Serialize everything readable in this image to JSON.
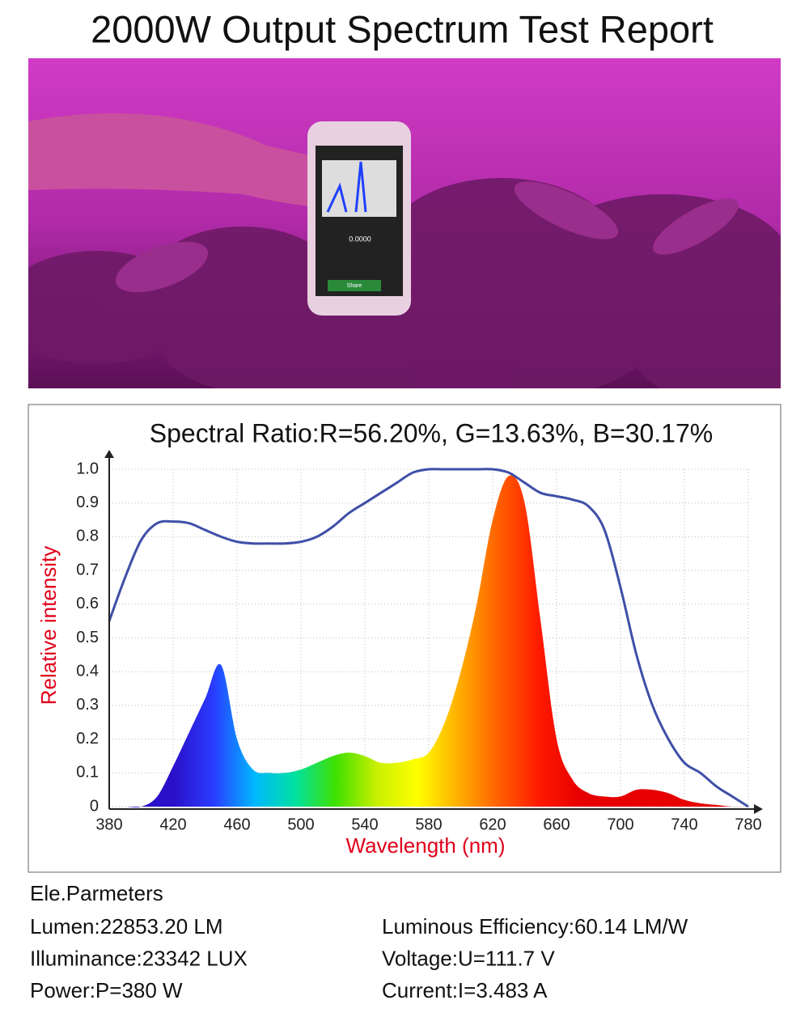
{
  "title": "2000W Output Spectrum Test Report",
  "photo": {
    "screen_reading": "0.0000",
    "button": "Share"
  },
  "chart_data": {
    "type": "line",
    "title": "Spectral Ratio:R=56.20%, G=13.63%, B=30.17%",
    "x_label": "Wavelength (nm)",
    "y_label": "Relative intensity",
    "x": [
      380,
      390,
      400,
      410,
      420,
      430,
      440,
      450,
      460,
      470,
      480,
      490,
      500,
      510,
      520,
      530,
      540,
      550,
      560,
      570,
      580,
      590,
      600,
      610,
      620,
      630,
      640,
      650,
      660,
      670,
      680,
      690,
      700,
      710,
      720,
      730,
      740,
      750,
      760,
      770,
      780
    ],
    "series": [
      {
        "type": "area",
        "colors": [
          "#2a10c8",
          "#2a3cff",
          "#00b8ff",
          "#00e0a0",
          "#40e000",
          "#c8f000",
          "#ffff00",
          "#ffb000",
          "#ff6000",
          "#ff1a00",
          "#e60000",
          "#e60000"
        ],
        "values": [
          0,
          0,
          0,
          0.03,
          0.12,
          0.22,
          0.32,
          0.42,
          0.2,
          0.11,
          0.1,
          0.1,
          0.11,
          0.13,
          0.15,
          0.16,
          0.15,
          0.13,
          0.13,
          0.14,
          0.16,
          0.25,
          0.4,
          0.6,
          0.85,
          0.98,
          0.9,
          0.55,
          0.2,
          0.08,
          0.04,
          0.03,
          0.03,
          0.05,
          0.05,
          0.04,
          0.02,
          0.01,
          0.005,
          0,
          0
        ]
      },
      {
        "type": "line",
        "color": "#3f4fa8",
        "values": [
          0.55,
          0.68,
          0.79,
          0.84,
          0.845,
          0.84,
          0.82,
          0.8,
          0.785,
          0.78,
          0.78,
          0.78,
          0.785,
          0.8,
          0.83,
          0.87,
          0.9,
          0.93,
          0.96,
          0.99,
          1.0,
          1.0,
          1.0,
          1.0,
          1.0,
          0.99,
          0.96,
          0.93,
          0.92,
          0.91,
          0.89,
          0.82,
          0.65,
          0.45,
          0.3,
          0.2,
          0.13,
          0.1,
          0.06,
          0.03,
          0
        ]
      }
    ],
    "xlim": [
      380,
      780
    ],
    "xticks": [
      380,
      420,
      460,
      500,
      540,
      580,
      620,
      660,
      700,
      740,
      780
    ],
    "ylim": [
      0,
      1
    ],
    "yticks": [
      0,
      0.1,
      0.2,
      0.3,
      0.4,
      0.5,
      0.6,
      0.7,
      0.8,
      0.9,
      {
        "value": 1,
        "label": "1.0"
      }
    ],
    "grid": true,
    "label_color": "#e0001a"
  },
  "parameters": {
    "heading": "Ele.Parmeters",
    "items": [
      [
        "Lumen:22853.20 LM",
        "Luminous Efficiency:60.14 LM/W"
      ],
      [
        "Illuminance:23342 LUX",
        "Voltage:U=111.7 V"
      ],
      [
        "Power:P=380 W",
        "Current:I=3.483 A"
      ]
    ]
  }
}
